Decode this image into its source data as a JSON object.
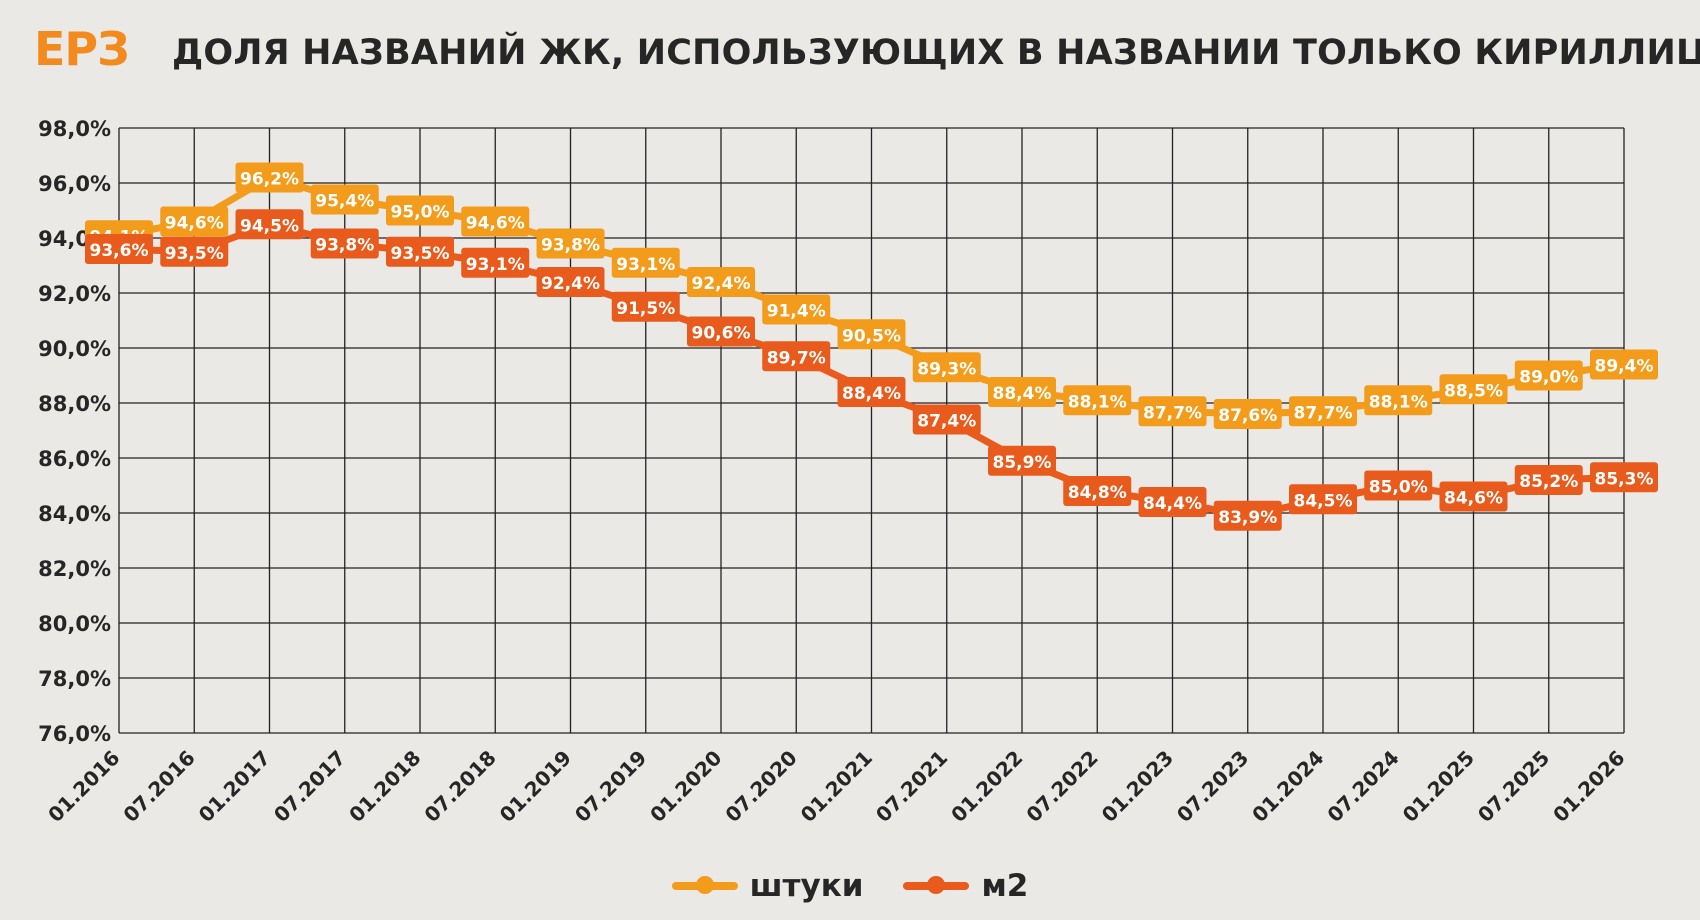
{
  "header": {
    "logo": "ЕРЗ",
    "title": "ДОЛЯ НАЗВАНИЙ ЖК, ИСПОЛЬЗУЮЩИХ В НАЗВАНИИ ТОЛЬКО КИРИЛЛИЦУ"
  },
  "colors": {
    "logo": "#f28a1e",
    "series_pcs": "#f39c1b",
    "series_m2": "#e95b1c",
    "grid": "#222222",
    "background": "#ebe9e6"
  },
  "legend": {
    "placement": "bottom-center",
    "items": [
      {
        "label": "штуки"
      },
      {
        "label": "м2"
      }
    ]
  },
  "chart_data": {
    "type": "line",
    "title": "ДОЛЯ НАЗВАНИЙ ЖК, ИСПОЛЬЗУЮЩИХ В НАЗВАНИИ ТОЛЬКО КИРИЛЛИЦУ",
    "xlabel": "",
    "ylabel": "",
    "grid": true,
    "legend_placement": "bottom-center",
    "ylim": [
      76.0,
      98.0
    ],
    "yticks": [
      "76,0%",
      "78,0%",
      "80,0%",
      "82,0%",
      "84,0%",
      "86,0%",
      "88,0%",
      "90,0%",
      "92,0%",
      "94,0%",
      "96,0%",
      "98,0%"
    ],
    "categories": [
      "01.2016",
      "07.2016",
      "01.2017",
      "07.2017",
      "01.2018",
      "07.2018",
      "01.2019",
      "07.2019",
      "01.2020",
      "07.2020",
      "01.2021",
      "07.2021",
      "01.2022",
      "07.2022",
      "01.2023",
      "07.2023",
      "01.2024",
      "07.2024",
      "01.2025",
      "07.2025",
      "01.2026"
    ],
    "series": [
      {
        "name": "штуки",
        "values": [
          94.1,
          94.6,
          96.2,
          95.4,
          95.0,
          94.6,
          93.8,
          93.1,
          92.4,
          91.4,
          90.5,
          89.3,
          88.4,
          88.1,
          87.7,
          87.6,
          87.7,
          88.1,
          88.5,
          89.0,
          89.4
        ],
        "labels": [
          "94,1%",
          "94,6%",
          "96,2%",
          "95,4%",
          "95,0%",
          "94,6%",
          "93,8%",
          "93,1%",
          "92,4%",
          "91,4%",
          "90,5%",
          "89,3%",
          "88,4%",
          "88,1%",
          "87,7%",
          "87,6%",
          "87,7%",
          "88,1%",
          "88,5%",
          "89,0%",
          "89,4%"
        ]
      },
      {
        "name": "м2",
        "values": [
          93.6,
          93.5,
          94.5,
          93.8,
          93.5,
          93.1,
          92.4,
          91.5,
          90.6,
          89.7,
          88.4,
          87.4,
          85.9,
          84.8,
          84.4,
          83.9,
          84.5,
          85.0,
          84.6,
          85.2,
          85.3
        ],
        "labels": [
          "93,6%",
          "93,5%",
          "94,5%",
          "93,8%",
          "93,5%",
          "93,1%",
          "92,4%",
          "91,5%",
          "90,6%",
          "89,7%",
          "88,4%",
          "87,4%",
          "85,9%",
          "84,8%",
          "84,4%",
          "83,9%",
          "84,5%",
          "85,0%",
          "84,6%",
          "85,2%",
          "85,3%"
        ]
      }
    ]
  }
}
